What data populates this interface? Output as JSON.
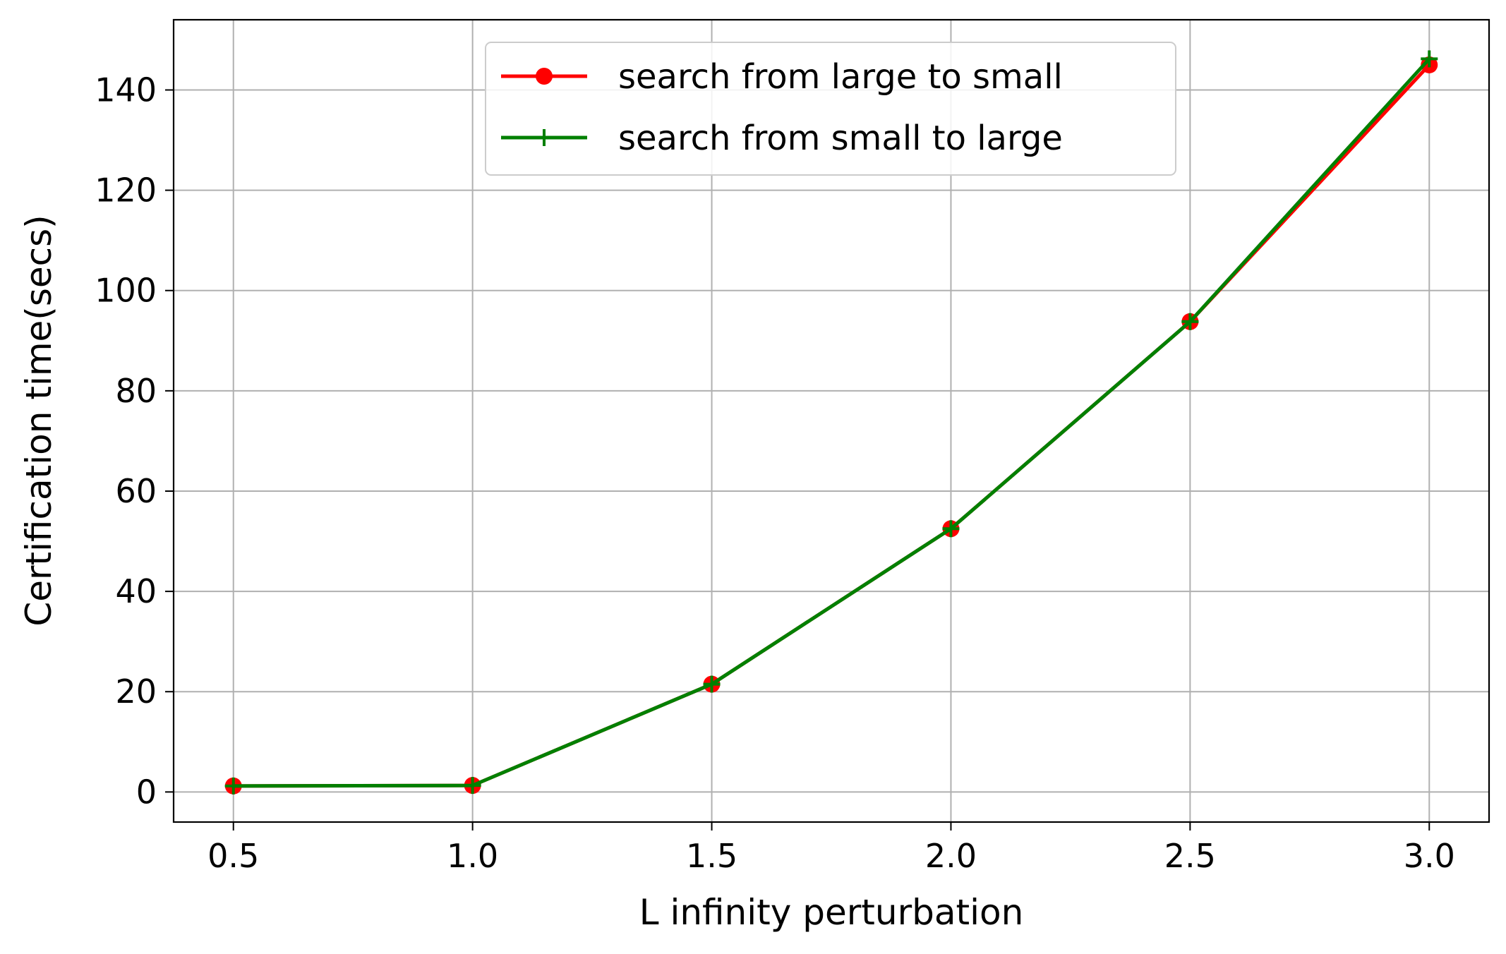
{
  "chart_data": {
    "type": "line",
    "xlabel": "L infinity perturbation",
    "ylabel": "Certification time(secs)",
    "x": [
      0.5,
      1.0,
      1.5,
      2.0,
      2.5,
      3.0
    ],
    "xlim": [
      0.375,
      3.125
    ],
    "ylim": [
      -6,
      154
    ],
    "xticks": [
      0.5,
      1.0,
      1.5,
      2.0,
      2.5,
      3.0
    ],
    "xtick_labels": [
      "0.5",
      "1.0",
      "1.5",
      "2.0",
      "2.5",
      "3.0"
    ],
    "yticks": [
      0,
      20,
      40,
      60,
      80,
      100,
      120,
      140
    ],
    "ytick_labels": [
      "0",
      "20",
      "40",
      "60",
      "80",
      "100",
      "120",
      "140"
    ],
    "grid": true,
    "legend_position": "top-center",
    "series": [
      {
        "name": "search from large to small",
        "color": "#ff0000",
        "marker": "circle",
        "values": [
          1.2,
          1.3,
          21.5,
          52.5,
          93.8,
          145.0
        ]
      },
      {
        "name": "search from small to large",
        "color": "#008000",
        "marker": "plus",
        "values": [
          1.2,
          1.3,
          21.5,
          52.5,
          93.8,
          146.2
        ]
      }
    ]
  }
}
